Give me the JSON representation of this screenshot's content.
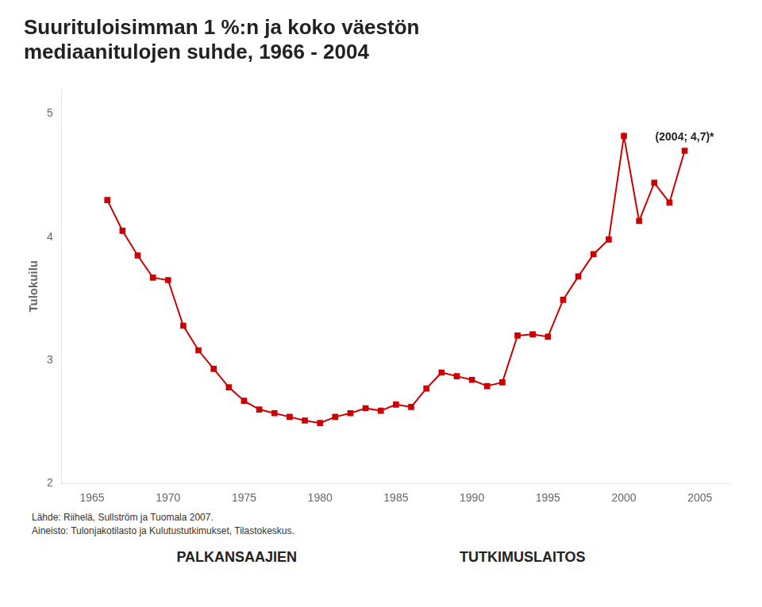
{
  "chart_data": {
    "type": "line",
    "title": [
      "Suurituloisimman 1 %:n ja koko väestön",
      "mediaanitulojen suhde, 1966 - 2004"
    ],
    "ylabel": "Tulokuilu",
    "x": [
      1966,
      1967,
      1968,
      1969,
      1970,
      1971,
      1972,
      1973,
      1974,
      1975,
      1976,
      1977,
      1978,
      1979,
      1980,
      1981,
      1982,
      1983,
      1984,
      1985,
      1986,
      1987,
      1988,
      1989,
      1990,
      1991,
      1992,
      1993,
      1994,
      1995,
      1996,
      1997,
      1998,
      1999,
      2000,
      2001,
      2002,
      2003,
      2004
    ],
    "values": [
      4.3,
      4.05,
      3.85,
      3.67,
      3.65,
      3.28,
      3.08,
      2.93,
      2.78,
      2.67,
      2.6,
      2.57,
      2.54,
      2.51,
      2.49,
      2.54,
      2.57,
      2.61,
      2.59,
      2.64,
      2.62,
      2.77,
      2.9,
      2.87,
      2.84,
      2.79,
      2.82,
      3.2,
      3.21,
      3.19,
      3.49,
      3.68,
      3.86,
      3.98,
      4.82,
      4.13,
      4.44,
      4.28,
      4.7
    ],
    "color": "#cc0000",
    "marker": "square",
    "xlim": [
      1963,
      2007
    ],
    "xticks": [
      1965,
      1970,
      1975,
      1980,
      1985,
      1990,
      1995,
      2000,
      2005
    ],
    "ylim": [
      2.0,
      5.2
    ],
    "yticks": [
      2,
      3,
      4,
      5
    ],
    "grid": false,
    "annotations": [
      {
        "text": "(2004; 4,7)*",
        "x": 2004,
        "y": 4.7
      }
    ],
    "footnotes": [
      "Lähde: Riihelä, Sullström ja Tuomala 2007.",
      "Aineisto: Tulonjakotilasto ja Kulutustutkimukset, Tilastokeskus."
    ],
    "logo": [
      "PALKANSAAJIEN",
      "TUTKIMUSLAITOS"
    ]
  }
}
